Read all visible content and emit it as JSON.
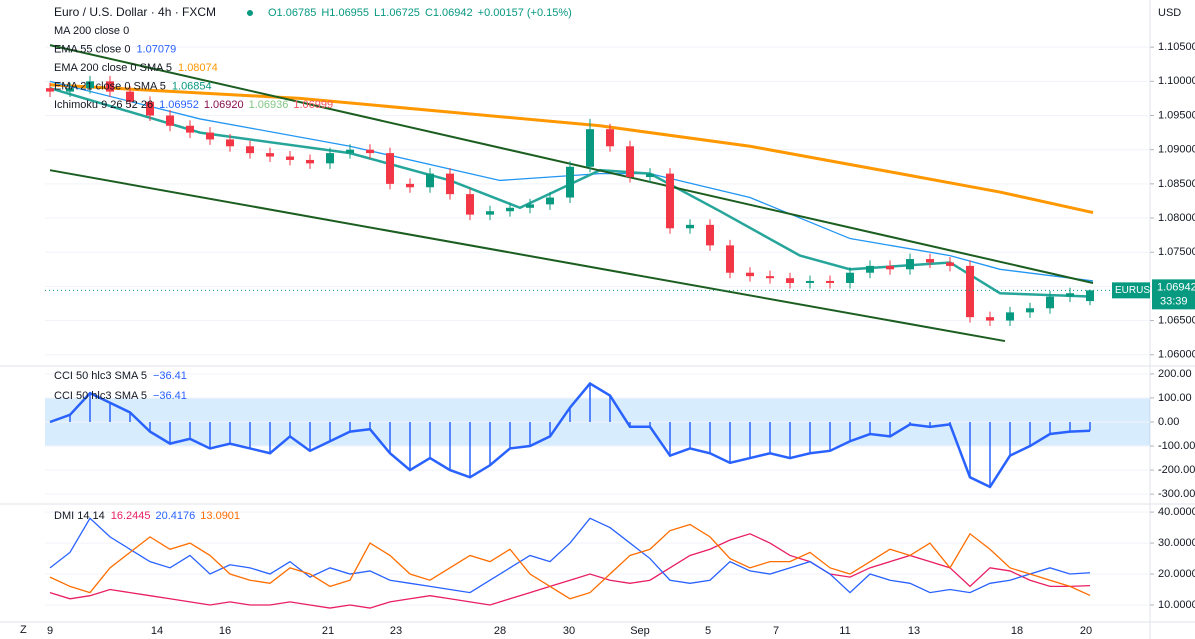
{
  "header": {
    "title": "Euro / U.S. Dollar · 4h · FXCM",
    "ohlc": [
      "O1.06785",
      "H1.06955",
      "L1.06725",
      "C1.06942",
      "+0.00157 (+0.15%)"
    ],
    "legend": [
      {
        "label": "MA 200 close 0",
        "value": null,
        "color": "#131722"
      },
      {
        "label": "EMA 55 close 0",
        "value": "1.07079",
        "color": "#2962ff"
      },
      {
        "label": "EMA 200 close 0 SMA 5",
        "value": "1.08074",
        "color": "#ff9800"
      },
      {
        "label": "EMA 21 close 0 SMA 5",
        "value": "1.06854",
        "color": "#089981"
      }
    ],
    "ichimoku": {
      "label": "Ichimoku 9 26 52 26",
      "values": [
        "1.06952",
        "1.06920",
        "1.06936",
        "1.06999"
      ],
      "colors": [
        "#2962ff",
        "#880e4f",
        "#81c784",
        "#f7525f"
      ]
    },
    "currency": "USD",
    "symbol": "EURUSD",
    "price": "1.06942",
    "countdown": "33:39",
    "cci_legend": [
      {
        "label": "CCI 50 hlc3 SMA 5",
        "value": "−36.41"
      },
      {
        "label": "CCI 50 hlc3 SMA 5",
        "value": "−36.41"
      }
    ],
    "dmi_legend": {
      "label": "DMI 14 14",
      "values": [
        "16.2445",
        "20.4176",
        "13.0901"
      ]
    }
  },
  "chart_data": [
    {
      "type": "candlestick",
      "xlim": [
        -0.25,
        55
      ],
      "ylim": [
        1.0585,
        1.1119
      ],
      "up_color": "#089981",
      "down_color": "#f23645",
      "yticks": [
        {
          "value": 1.06,
          "label": "1.06000"
        },
        {
          "value": 1.065,
          "label": "1.06500"
        },
        {
          "value": 1.07,
          "label": "1.07000"
        },
        {
          "value": 1.075,
          "label": "1.07500"
        },
        {
          "value": 1.08,
          "label": "1.08000"
        },
        {
          "value": 1.085,
          "label": "1.08500"
        },
        {
          "value": 1.09,
          "label": "1.09000"
        },
        {
          "value": 1.095,
          "label": "1.09500"
        },
        {
          "value": 1.1,
          "label": "1.10000"
        },
        {
          "value": 1.105,
          "label": "1.10500"
        }
      ],
      "open": [
        1.099,
        1.0985,
        1.099,
        1.1,
        1.0985,
        1.097,
        1.095,
        1.0935,
        1.0925,
        1.0915,
        1.0905,
        1.0895,
        1.089,
        1.0885,
        1.088,
        1.0895,
        1.09,
        1.0895,
        1.085,
        1.0845,
        1.0865,
        1.0835,
        1.0805,
        1.081,
        1.0815,
        1.082,
        1.083,
        1.0875,
        1.093,
        1.0905,
        1.086,
        1.0865,
        1.0785,
        1.079,
        1.076,
        1.072,
        1.0715,
        1.0712,
        1.0705,
        1.0708,
        1.0705,
        1.072,
        1.073,
        1.0725,
        1.074,
        1.0735,
        1.073,
        1.0655,
        1.065,
        1.0662,
        1.0668,
        1.0685,
        1.06785
      ],
      "high": [
        1.0998,
        1.0998,
        1.1008,
        1.1008,
        1.0993,
        1.0978,
        1.0958,
        1.0943,
        1.0933,
        1.0923,
        1.0913,
        1.0903,
        1.0898,
        1.0893,
        1.0903,
        1.0908,
        1.0908,
        1.0903,
        1.0858,
        1.0873,
        1.0873,
        1.0843,
        1.0818,
        1.0823,
        1.0828,
        1.0838,
        1.0883,
        1.0945,
        1.0938,
        1.0913,
        1.0873,
        1.0873,
        1.0798,
        1.0798,
        1.0768,
        1.0728,
        1.0723,
        1.072,
        1.0716,
        1.0716,
        1.0728,
        1.0738,
        1.0738,
        1.0748,
        1.0748,
        1.0743,
        1.0738,
        1.0663,
        1.067,
        1.0676,
        1.0693,
        1.0698,
        1.06955
      ],
      "low": [
        1.0977,
        1.0977,
        1.0982,
        1.0977,
        1.0962,
        1.0942,
        1.0927,
        1.0917,
        1.0907,
        1.0897,
        1.0887,
        1.0882,
        1.0877,
        1.0872,
        1.0872,
        1.0887,
        1.0887,
        1.0842,
        1.0837,
        1.0837,
        1.0827,
        1.0797,
        1.0797,
        1.0802,
        1.0807,
        1.0812,
        1.0822,
        1.0867,
        1.0897,
        1.0852,
        1.0852,
        1.0777,
        1.0777,
        1.0752,
        1.0712,
        1.0707,
        1.0704,
        1.0697,
        1.0697,
        1.0697,
        1.0697,
        1.0712,
        1.0717,
        1.0717,
        1.0727,
        1.0722,
        1.0647,
        1.0642,
        1.0642,
        1.0654,
        1.066,
        1.0677,
        1.06725
      ],
      "close": [
        1.0985,
        1.099,
        1.1,
        1.0985,
        1.097,
        1.095,
        1.0935,
        1.0925,
        1.0915,
        1.0905,
        1.0895,
        1.089,
        1.0885,
        1.088,
        1.0895,
        1.09,
        1.0895,
        1.085,
        1.0845,
        1.0865,
        1.0835,
        1.0805,
        1.081,
        1.0815,
        1.082,
        1.083,
        1.0875,
        1.093,
        1.0905,
        1.086,
        1.0865,
        1.0785,
        1.079,
        1.076,
        1.072,
        1.0715,
        1.0712,
        1.0705,
        1.0708,
        1.0705,
        1.072,
        1.073,
        1.0725,
        1.074,
        1.0735,
        1.073,
        1.0655,
        1.065,
        1.0662,
        1.0668,
        1.0685,
        1.069,
        1.06942
      ],
      "lines": [
        {
          "color": "#ff9800",
          "width": 3,
          "x": [
            0,
            12.5,
            20,
            27.5,
            35,
            42.5,
            47.5,
            52.15
          ],
          "values": [
            1.0995,
            1.0975,
            1.0955,
            1.0935,
            1.0905,
            1.0865,
            1.0838,
            1.0808
          ]
        },
        {
          "color": "#2196f3",
          "width": 1.3,
          "x": [
            0,
            7.5,
            15,
            22.5,
            27.5,
            30,
            35,
            40,
            45,
            47.5,
            52.15
          ],
          "values": [
            1.1,
            1.0945,
            1.0905,
            1.0855,
            1.0865,
            1.0865,
            1.083,
            1.077,
            1.0745,
            1.0725,
            1.0708
          ]
        },
        {
          "color": "#26a69a",
          "width": 2.5,
          "x": [
            0,
            7.5,
            15,
            20,
            23.5,
            27.5,
            30,
            33.5,
            37.5,
            40,
            45,
            47.5,
            52.15
          ],
          "values": [
            1.099,
            1.0925,
            1.0895,
            1.0855,
            1.0815,
            1.087,
            1.0865,
            1.081,
            1.0745,
            1.0725,
            1.0735,
            1.069,
            1.0685
          ]
        },
        {
          "color": "#1b5e20",
          "width": 2,
          "x": [
            0,
            52.15
          ],
          "values": [
            1.1053,
            1.0705
          ]
        },
        {
          "color": "#1b5e20",
          "width": 2,
          "x": [
            0,
            47.75
          ],
          "values": [
            1.087,
            1.062
          ]
        }
      ]
    },
    {
      "type": "cci",
      "xlim": [
        -0.25,
        55
      ],
      "ylim": [
        -337,
        233
      ],
      "color": "#2962ff",
      "band": [
        -100,
        100
      ],
      "yticks": [
        {
          "value": 200,
          "label": "200.00"
        },
        {
          "value": 100,
          "label": "100.00"
        },
        {
          "value": 0,
          "label": "0.00"
        },
        {
          "value": -100,
          "label": "-100.00"
        },
        {
          "value": -200,
          "label": "-200.00"
        },
        {
          "value": -300,
          "label": "-300.00"
        }
      ],
      "values": [
        0,
        30,
        120,
        80,
        40,
        -40,
        -90,
        -70,
        -110,
        -90,
        -110,
        -130,
        -60,
        -120,
        -80,
        -40,
        -30,
        -130,
        -200,
        -150,
        -200,
        -230,
        -180,
        -110,
        -100,
        -60,
        60,
        160,
        110,
        -20,
        -20,
        -140,
        -110,
        -130,
        -170,
        -150,
        -130,
        -150,
        -130,
        -120,
        -80,
        -50,
        -60,
        -10,
        -20,
        -10,
        -230,
        -270,
        -140,
        -100,
        -50,
        -40,
        -36.41
      ]
    },
    {
      "type": "line",
      "xlim": [
        -0.25,
        55
      ],
      "ylim": [
        4.5,
        42.3
      ],
      "yticks": [
        {
          "value": 40,
          "label": "40.0000"
        },
        {
          "value": 30,
          "label": "30.0000"
        },
        {
          "value": 20,
          "label": "20.0000"
        },
        {
          "value": 10,
          "label": "10.0000"
        }
      ],
      "xticks": [
        {
          "value": 0,
          "label": "9"
        },
        {
          "value": 5.35,
          "label": "14"
        },
        {
          "value": 8.75,
          "label": "16"
        },
        {
          "value": 13.9,
          "label": "21"
        },
        {
          "value": 17.3,
          "label": "23"
        },
        {
          "value": 22.5,
          "label": "28"
        },
        {
          "value": 25.95,
          "label": "30"
        },
        {
          "value": 29.5,
          "label": "Sep"
        },
        {
          "value": 32.9,
          "label": "5"
        },
        {
          "value": 36.3,
          "label": "7"
        },
        {
          "value": 39.75,
          "label": "11"
        },
        {
          "value": 43.2,
          "label": "13"
        },
        {
          "value": 48.35,
          "label": "18"
        },
        {
          "value": 51.8,
          "label": "20"
        }
      ],
      "series": [
        {
          "color": "#e91e63",
          "values": [
            14,
            12,
            13,
            15,
            14,
            13,
            12,
            11,
            10,
            11,
            10,
            10,
            11,
            10,
            9,
            10,
            9,
            11,
            12,
            13,
            12,
            11,
            10,
            12,
            14,
            16,
            18,
            20,
            18,
            17,
            18,
            22,
            26,
            28,
            31,
            33,
            30,
            26,
            24,
            20,
            19,
            22,
            24,
            26,
            24,
            22,
            16,
            22,
            21,
            18,
            16,
            16,
            16.2445
          ]
        },
        {
          "color": "#2962ff",
          "values": [
            22,
            27,
            38,
            32,
            28,
            24,
            22,
            26,
            20,
            23,
            22,
            20,
            24,
            19,
            22,
            20,
            21,
            18,
            17,
            16,
            15,
            14,
            18,
            22,
            26,
            24,
            30,
            38,
            35,
            30,
            25,
            18,
            17,
            18,
            24,
            21,
            20,
            22,
            24,
            20,
            14,
            20,
            18,
            17,
            14,
            15,
            14,
            17,
            18,
            20,
            22,
            20,
            20.4176
          ]
        },
        {
          "color": "#ff6d00",
          "values": [
            19,
            16,
            14,
            22,
            27,
            32,
            28,
            30,
            26,
            20,
            18,
            17,
            22,
            20,
            16,
            18,
            30,
            26,
            20,
            18,
            22,
            26,
            24,
            28,
            20,
            16,
            12,
            14,
            20,
            26,
            28,
            34,
            36,
            32,
            25,
            22,
            24,
            24,
            27,
            22,
            20,
            24,
            28,
            26,
            30,
            22,
            33,
            28,
            22,
            20,
            18,
            16,
            13.0901
          ]
        }
      ]
    }
  ]
}
